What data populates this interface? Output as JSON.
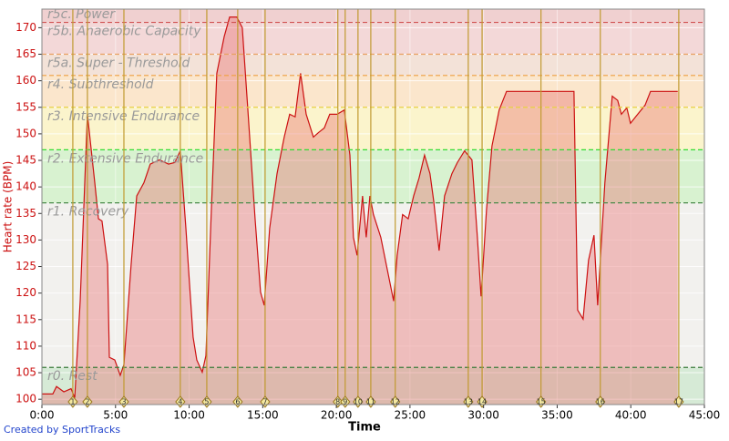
{
  "chart_data": {
    "type": "area",
    "x_label": "Time",
    "y_label": "Heart rate (BPM)",
    "footer": "Created by SportTracks",
    "xlim": [
      0,
      45
    ],
    "ylim": [
      99,
      173.5
    ],
    "xticks": [
      {
        "value": 0,
        "label": "0:00"
      },
      {
        "value": 5,
        "label": "5:00"
      },
      {
        "value": 10,
        "label": "10:00"
      },
      {
        "value": 15,
        "label": "15:00"
      },
      {
        "value": 20,
        "label": "20:00"
      },
      {
        "value": 25,
        "label": "25:00"
      },
      {
        "value": 30,
        "label": "30:00"
      },
      {
        "value": 35,
        "label": "35:00"
      },
      {
        "value": 40,
        "label": "40:00"
      },
      {
        "value": 45,
        "label": "45:00"
      }
    ],
    "yticks": [
      100,
      105,
      110,
      115,
      120,
      125,
      130,
      135,
      140,
      145,
      150,
      155,
      160,
      165,
      170
    ],
    "grid": true,
    "zones": [
      {
        "name": "r0. Rest",
        "max": 106,
        "color": "#3a7a3a",
        "fill": "#d6ead6"
      },
      {
        "name": "r1. Recovery",
        "max": 137,
        "color": "#4a8a4a",
        "fill": "#f2f1ee"
      },
      {
        "name": "r2. Extensive Endurance",
        "max": 147,
        "color": "#33dd33",
        "fill": "#d8f2d0"
      },
      {
        "name": "r3. Intensive Endurance",
        "max": 155,
        "color": "#e8d040",
        "fill": "#fbf4cc"
      },
      {
        "name": "r4. Subthreshold",
        "max": 161,
        "color": "#f0a040",
        "fill": "#fbe6cc"
      },
      {
        "name": "r5a. Super - Threshold",
        "max": 165,
        "color": "#e8a060",
        "fill": "#f3e2d8"
      },
      {
        "name": "r5b. Anaerobic Capacity",
        "max": 171,
        "color": "#d05050",
        "fill": "#f3d8d8"
      },
      {
        "name": "r5c. Power",
        "max": null,
        "color": "#d05050",
        "fill": "#f0d0d0"
      }
    ],
    "laps": [
      {
        "label": "1",
        "x": 2.1
      },
      {
        "label": "2",
        "x": 3.09
      },
      {
        "label": "3",
        "x": 5.57
      },
      {
        "label": "4",
        "x": 9.4
      },
      {
        "label": "5",
        "x": 11.2
      },
      {
        "label": "6",
        "x": 13.3
      },
      {
        "label": "7",
        "x": 15.16
      },
      {
        "label": "8",
        "x": 20.1
      },
      {
        "label": "9",
        "x": 20.6
      },
      {
        "label": "10",
        "x": 21.47
      },
      {
        "label": "11",
        "x": 22.34
      },
      {
        "label": "12",
        "x": 24.0
      },
      {
        "label": "13",
        "x": 28.96
      },
      {
        "label": "14",
        "x": 29.9
      },
      {
        "label": "15",
        "x": 33.9
      },
      {
        "label": "16",
        "x": 37.93
      },
      {
        "label": "17",
        "x": 43.26
      }
    ],
    "series": [
      {
        "name": "Heart rate",
        "color": "#cc1111",
        "x": [
          0,
          0.74,
          0.99,
          1.49,
          1.98,
          2.23,
          2.6,
          3.09,
          3.59,
          3.84,
          4.08,
          4.46,
          4.58,
          4.95,
          5.32,
          5.57,
          6.06,
          6.44,
          6.93,
          7.36,
          7.98,
          8.6,
          9.03,
          9.4,
          9.78,
          10.02,
          10.27,
          10.52,
          10.89,
          11.14,
          11.51,
          11.88,
          12.38,
          12.75,
          13.24,
          13.61,
          13.99,
          14.48,
          14.85,
          15.1,
          15.47,
          15.97,
          16.46,
          16.83,
          17.2,
          17.57,
          17.95,
          18.44,
          18.81,
          19.18,
          19.55,
          20.05,
          20.54,
          20.92,
          21.16,
          21.41,
          21.78,
          22.03,
          22.28,
          22.52,
          23.02,
          23.39,
          23.89,
          24.13,
          24.5,
          24.88,
          25.25,
          25.62,
          25.99,
          26.36,
          26.61,
          26.98,
          27.35,
          27.85,
          28.22,
          28.71,
          29.21,
          29.58,
          29.83,
          30.2,
          30.57,
          31.06,
          31.56,
          36.14,
          36.39,
          36.76,
          37.13,
          37.5,
          37.75,
          38.24,
          38.74,
          39.11,
          39.36,
          39.73,
          39.98,
          40.47,
          40.97,
          41.34,
          43.19
        ],
        "values": [
          101,
          101,
          102.4,
          101.4,
          102,
          100.3,
          118.5,
          153.7,
          140.8,
          134,
          133.6,
          125.4,
          107.9,
          107.4,
          104.5,
          106.5,
          125.4,
          138.3,
          140.8,
          144.3,
          145.1,
          144.3,
          144.6,
          146.8,
          132.2,
          122,
          111.7,
          107.4,
          105.1,
          108.2,
          135.7,
          161.4,
          168.3,
          172,
          172,
          170,
          154.5,
          134,
          120.2,
          117.7,
          132.2,
          142.5,
          149.4,
          153.7,
          153.2,
          161.4,
          153.7,
          149.4,
          150.3,
          151.1,
          153.7,
          153.7,
          154.5,
          146,
          130.5,
          127.1,
          138.3,
          130.5,
          138.3,
          134.8,
          130.5,
          125.4,
          118.5,
          127.1,
          134.8,
          134,
          138.3,
          141.7,
          146,
          142.5,
          137.4,
          128,
          138.3,
          142.5,
          144.6,
          146.8,
          145.1,
          130.5,
          119.4,
          135.7,
          147.7,
          154.5,
          158,
          158,
          116.8,
          115.1,
          126.2,
          130.9,
          117.7,
          140.8,
          157.1,
          156.3,
          153.7,
          154.9,
          152,
          153.7,
          155.4,
          158,
          158
        ]
      }
    ]
  }
}
